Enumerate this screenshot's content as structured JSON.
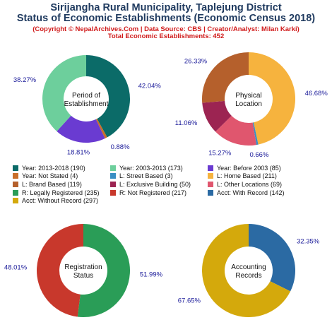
{
  "header": {
    "title_line1": "Sirijangha Rural Municipality, Taplejung District",
    "title_line2": "Status of Economic Establishments (Economic Census 2018)",
    "subtitle_line1": "(Copyright © NepalArchives.Com | Data Source: CBS | Creator/Analyst: Milan Karki)",
    "subtitle_line2": "Total Economic Establishments: 452"
  },
  "legend": [
    {
      "label": "Year: 2013-2018 (190)",
      "color": "#0b6b68"
    },
    {
      "label": "Year: 2003-2013 (173)",
      "color": "#6dcf9c"
    },
    {
      "label": "Year: Before 2003 (85)",
      "color": "#6a3bd1"
    },
    {
      "label": "Year: Not Stated (4)",
      "color": "#c96f2a"
    },
    {
      "label": "L: Street Based (3)",
      "color": "#3a8fc4"
    },
    {
      "label": "L: Home Based (211)",
      "color": "#f6b33e"
    },
    {
      "label": "L: Brand Based (119)",
      "color": "#b5602c"
    },
    {
      "label": "L: Exclusive Building (50)",
      "color": "#9c2452"
    },
    {
      "label": "L: Other Locations (69)",
      "color": "#e0566e"
    },
    {
      "label": "R: Legally Registered (235)",
      "color": "#2a9d57"
    },
    {
      "label": "R: Not Registered (217)",
      "color": "#c8382c"
    },
    {
      "label": "Acct: With Record (142)",
      "color": "#2b6aa3"
    },
    {
      "label": "Acct: Without Record (297)",
      "color": "#d4a90c"
    }
  ],
  "chart_data": [
    {
      "type": "pie",
      "center_label": [
        "Period of",
        "Establishment"
      ],
      "slices": [
        {
          "label": "Year: 2013-2018",
          "value": 190,
          "percent": "42.04%",
          "color": "#0b6b68"
        },
        {
          "label": "Year: Not Stated",
          "value": 4,
          "percent": "0.88%",
          "color": "#c96f2a"
        },
        {
          "label": "Year: Before 2003",
          "value": 85,
          "percent": "18.81%",
          "color": "#6a3bd1"
        },
        {
          "label": "Year: 2003-2013",
          "value": 173,
          "percent": "38.27%",
          "color": "#6dcf9c"
        }
      ]
    },
    {
      "type": "pie",
      "center_label": [
        "Physical",
        "Location"
      ],
      "slices": [
        {
          "label": "L: Home Based",
          "value": 211,
          "percent": "46.68%",
          "color": "#f6b33e"
        },
        {
          "label": "L: Street Based",
          "value": 3,
          "percent": "0.66%",
          "color": "#3a8fc4"
        },
        {
          "label": "L: Other Locations",
          "value": 69,
          "percent": "15.27%",
          "color": "#e0566e"
        },
        {
          "label": "L: Exclusive Building",
          "value": 50,
          "percent": "11.06%",
          "color": "#9c2452"
        },
        {
          "label": "L: Brand Based",
          "value": 119,
          "percent": "26.33%",
          "color": "#b5602c"
        }
      ]
    },
    {
      "type": "pie",
      "center_label": [
        "Registration",
        "Status"
      ],
      "slices": [
        {
          "label": "R: Legally Registered",
          "value": 235,
          "percent": "51.99%",
          "color": "#2a9d57"
        },
        {
          "label": "R: Not Registered",
          "value": 217,
          "percent": "48.01%",
          "color": "#c8382c"
        }
      ]
    },
    {
      "type": "pie",
      "center_label": [
        "Accounting",
        "Records"
      ],
      "slices": [
        {
          "label": "Acct: With Record",
          "value": 142,
          "percent": "32.35%",
          "color": "#2b6aa3"
        },
        {
          "label": "Acct: Without Record",
          "value": 297,
          "percent": "67.65%",
          "color": "#d4a90c"
        }
      ]
    }
  ]
}
